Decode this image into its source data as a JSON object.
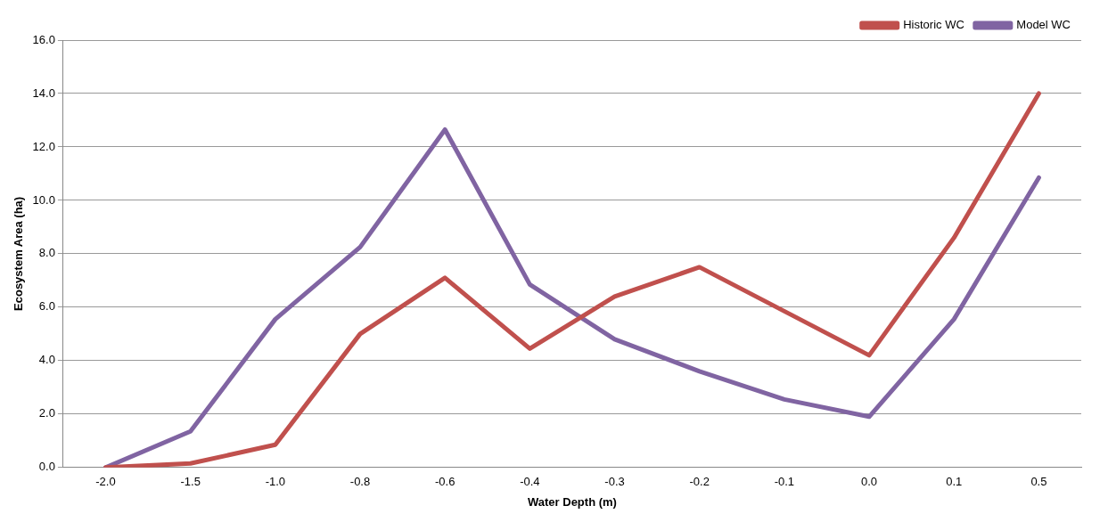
{
  "chart_data": {
    "type": "line",
    "xlabel": "Water Depth (m)",
    "ylabel": "Ecosystem Area (ha)",
    "categories": [
      "-2.0",
      "-1.5",
      "-1.0",
      "-0.8",
      "-0.6",
      "-0.4",
      "-0.3",
      "-0.2",
      "-0.1",
      "0.0",
      "0.1",
      "0.5"
    ],
    "series": [
      {
        "name": "Historic WC",
        "color": "#c0504d",
        "values": [
          0.0,
          0.15,
          0.85,
          5.0,
          7.1,
          4.45,
          6.4,
          7.5,
          5.85,
          4.2,
          8.6,
          14.0
        ]
      },
      {
        "name": "Model WC",
        "color": "#8064a2",
        "values": [
          0.0,
          1.35,
          5.55,
          8.25,
          12.65,
          6.85,
          4.8,
          3.6,
          2.55,
          1.9,
          5.55,
          10.85
        ]
      }
    ],
    "ylim": [
      0,
      16
    ],
    "yticks": [
      {
        "value": 0,
        "label": "0.0"
      },
      {
        "value": 2,
        "label": "2.0"
      },
      {
        "value": 4,
        "label": "4.0"
      },
      {
        "value": 6,
        "label": "6.0"
      },
      {
        "value": 8,
        "label": "8.0"
      },
      {
        "value": 10,
        "label": "10.0"
      },
      {
        "value": 12,
        "label": "12.0"
      },
      {
        "value": 14,
        "label": "14.0"
      },
      {
        "value": 16,
        "label": "16.0"
      }
    ],
    "grid": "y",
    "legend": "top right",
    "marker": "none",
    "line_style": "solid"
  }
}
